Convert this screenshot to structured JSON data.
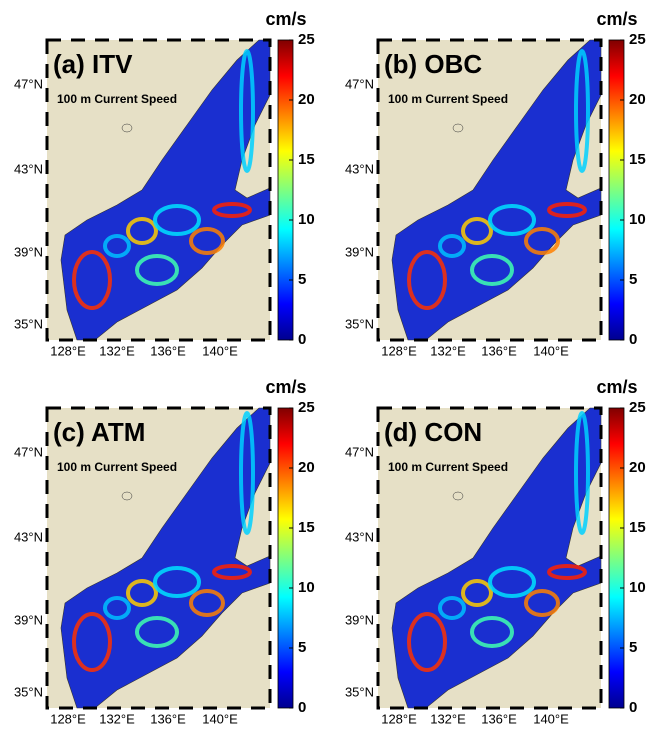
{
  "panels": [
    {
      "label": "(a) ITV",
      "subtitle": "100 m Current Speed",
      "unit": "cm/s"
    },
    {
      "label": "(b) OBC",
      "subtitle": "100 m Current Speed",
      "unit": "cm/s"
    },
    {
      "label": "(c) ATM",
      "subtitle": "100 m Current Speed",
      "unit": "cm/s"
    },
    {
      "label": "(d) CON",
      "subtitle": "100 m Current Speed",
      "unit": "cm/s"
    }
  ],
  "lat_labels": [
    "47°N",
    "43°N",
    "39°N",
    "35°N"
  ],
  "lon_labels": [
    "128°E",
    "132°E",
    "136°E",
    "140°E"
  ],
  "colorbar_lim": [
    0,
    25
  ],
  "colorbar_ticks": [
    0,
    5,
    10,
    15,
    20,
    25
  ]
}
